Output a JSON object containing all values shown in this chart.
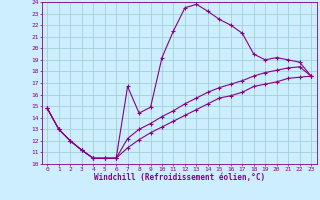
{
  "xlabel": "Windchill (Refroidissement éolien,°C)",
  "xlim": [
    -0.5,
    23.5
  ],
  "ylim": [
    10,
    24
  ],
  "xticks": [
    0,
    1,
    2,
    3,
    4,
    5,
    6,
    7,
    8,
    9,
    10,
    11,
    12,
    13,
    14,
    15,
    16,
    17,
    18,
    19,
    20,
    21,
    22,
    23
  ],
  "yticks": [
    10,
    11,
    12,
    13,
    14,
    15,
    16,
    17,
    18,
    19,
    20,
    21,
    22,
    23,
    24
  ],
  "bg_color": "#cceeff",
  "line_color": "#880088",
  "grid_color": "#99cccc",
  "line1_x": [
    0,
    1,
    2,
    3,
    4,
    5,
    6,
    7,
    8,
    9,
    10,
    11,
    12,
    13,
    14,
    15,
    16,
    17,
    18,
    19,
    20,
    21,
    22,
    23
  ],
  "line1_y": [
    14.8,
    13.0,
    12.0,
    11.2,
    10.5,
    10.5,
    10.5,
    16.7,
    14.4,
    14.9,
    19.2,
    21.5,
    23.5,
    23.8,
    23.2,
    22.5,
    22.0,
    21.3,
    19.5,
    19.0,
    19.2,
    19.0,
    18.8,
    17.6
  ],
  "line2_x": [
    0,
    1,
    2,
    3,
    4,
    5,
    6,
    7,
    8,
    9,
    10,
    11,
    12,
    13,
    14,
    15,
    16,
    17,
    18,
    19,
    20,
    21,
    22,
    23
  ],
  "line2_y": [
    14.8,
    13.0,
    12.0,
    11.2,
    10.5,
    10.5,
    10.5,
    12.2,
    13.0,
    13.5,
    14.1,
    14.6,
    15.2,
    15.7,
    16.2,
    16.6,
    16.9,
    17.2,
    17.6,
    17.9,
    18.1,
    18.3,
    18.4,
    17.6
  ],
  "line3_x": [
    0,
    1,
    2,
    3,
    4,
    5,
    6,
    7,
    8,
    9,
    10,
    11,
    12,
    13,
    14,
    15,
    16,
    17,
    18,
    19,
    20,
    21,
    22,
    23
  ],
  "line3_y": [
    14.8,
    13.0,
    12.0,
    11.2,
    10.5,
    10.5,
    10.5,
    11.4,
    12.1,
    12.7,
    13.2,
    13.7,
    14.2,
    14.7,
    15.2,
    15.7,
    15.9,
    16.2,
    16.7,
    16.9,
    17.1,
    17.4,
    17.5,
    17.6
  ]
}
